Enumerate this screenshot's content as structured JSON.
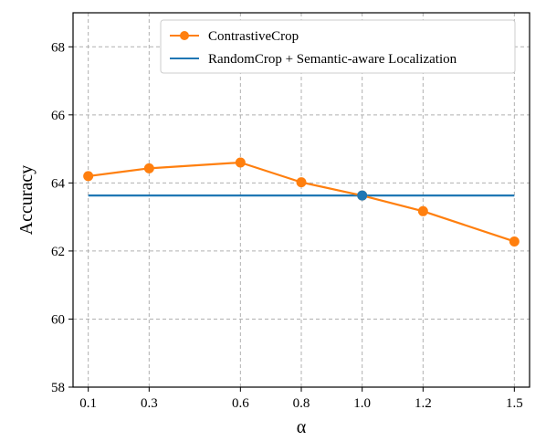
{
  "chart_data": {
    "type": "line",
    "title": "",
    "xlabel": "α",
    "ylabel": "Accuracy",
    "x": [
      0.1,
      0.3,
      0.6,
      0.8,
      1.0,
      1.2,
      1.5
    ],
    "x_tick_labels": [
      "0.1",
      "0.3",
      "0.6",
      "0.8",
      "1.0",
      "1.2",
      "1.5"
    ],
    "xlim": [
      0.05,
      1.55
    ],
    "ylim": [
      58,
      69
    ],
    "y_ticks": [
      58,
      60,
      62,
      64,
      66,
      68
    ],
    "y_tick_labels": [
      "58",
      "60",
      "62",
      "64",
      "66",
      "68"
    ],
    "grid": true,
    "grid_style": "dashed",
    "legend_position": "top-right",
    "series": [
      {
        "name": "ContrastiveCrop",
        "color": "#ff7f0e",
        "marker": "circle",
        "values": [
          64.2,
          64.43,
          64.6,
          64.02,
          63.63,
          63.17,
          62.28
        ]
      },
      {
        "name": "RandomCrop + Semantic-aware Localization",
        "color": "#1f77b4",
        "marker": "none",
        "values": [
          63.63,
          63.63,
          63.63,
          63.63,
          63.63,
          63.63,
          63.63
        ]
      }
    ],
    "annotations": [
      {
        "x": 1.0,
        "y": 63.63,
        "color": "#1f77b4",
        "marker": "circle"
      }
    ]
  }
}
